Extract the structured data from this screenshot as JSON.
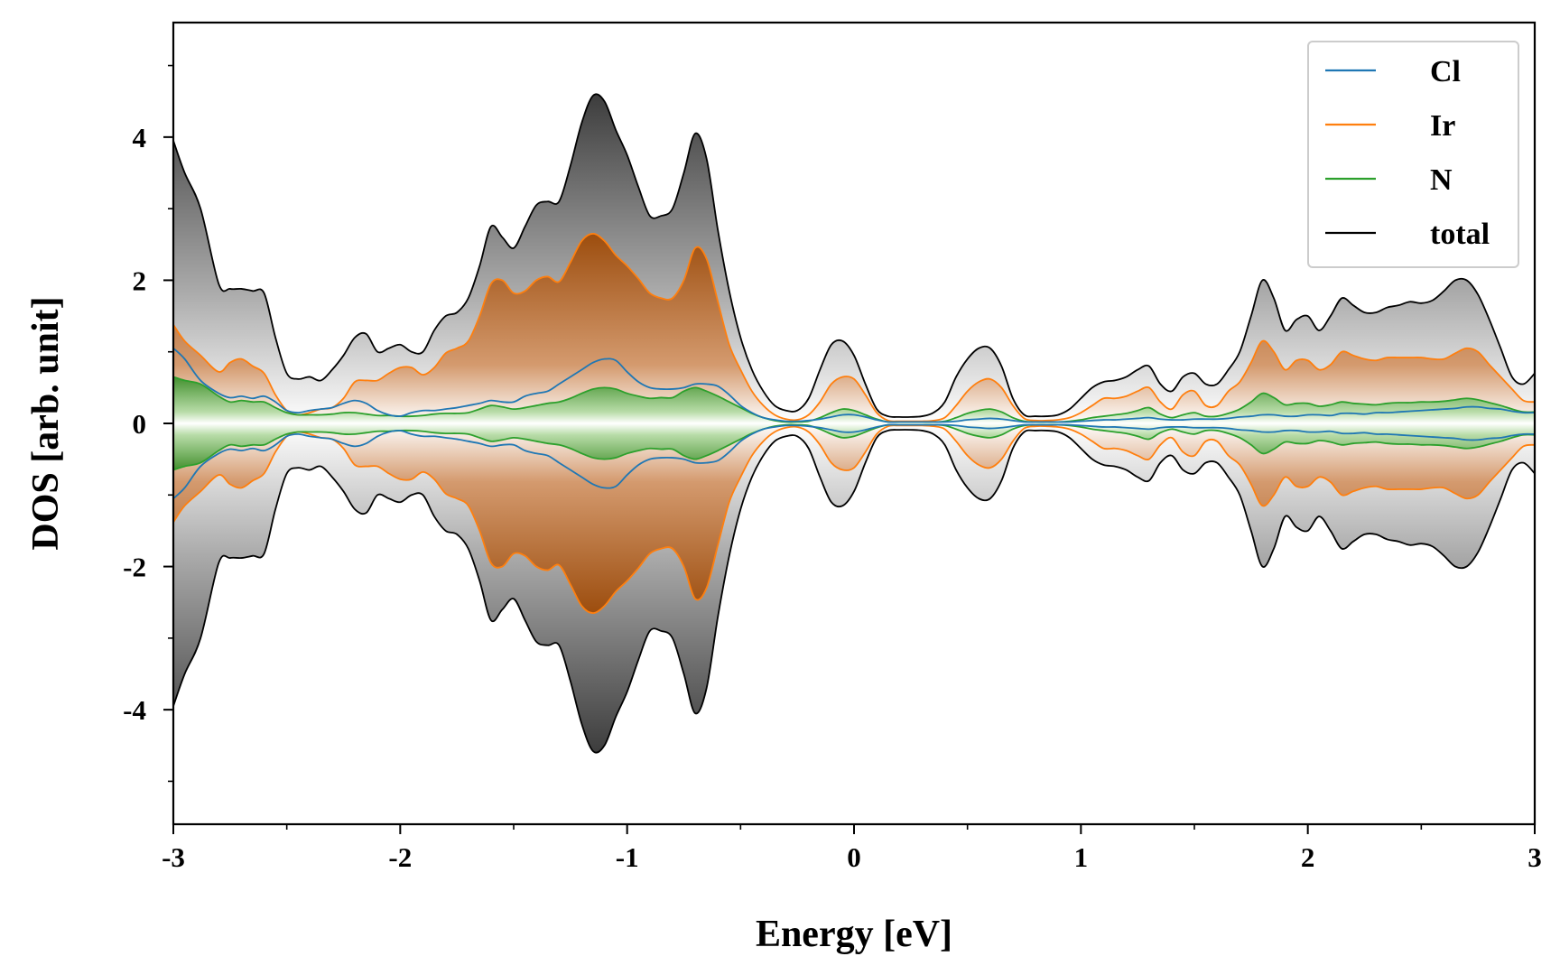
{
  "chart_data": {
    "type": "area",
    "title": "",
    "xlabel": "Energy [eV]",
    "ylabel": "DOS [arb. unit]",
    "xlim": [
      -3,
      3
    ],
    "ylim": [
      -5.6,
      5.6
    ],
    "x_ticks": [
      -3,
      -2,
      -1,
      0,
      1,
      2,
      3
    ],
    "x_tick_labels": [
      "-3",
      "-2",
      "-1",
      "0",
      "1",
      "2",
      "3"
    ],
    "y_ticks": [
      -4,
      -2,
      0,
      2,
      4
    ],
    "y_tick_labels": [
      "-4",
      "-2",
      "0",
      "2",
      "4"
    ],
    "mirrored": true,
    "legend_position": "top-right",
    "x": [
      -3.0,
      -2.95,
      -2.88,
      -2.8,
      -2.75,
      -2.7,
      -2.65,
      -2.6,
      -2.55,
      -2.5,
      -2.45,
      -2.4,
      -2.35,
      -2.3,
      -2.25,
      -2.2,
      -2.15,
      -2.1,
      -2.05,
      -2.0,
      -1.95,
      -1.9,
      -1.85,
      -1.8,
      -1.75,
      -1.7,
      -1.65,
      -1.6,
      -1.55,
      -1.5,
      -1.45,
      -1.4,
      -1.35,
      -1.3,
      -1.25,
      -1.2,
      -1.15,
      -1.1,
      -1.05,
      -1.0,
      -0.95,
      -0.9,
      -0.85,
      -0.8,
      -0.75,
      -0.7,
      -0.65,
      -0.6,
      -0.55,
      -0.5,
      -0.45,
      -0.4,
      -0.35,
      -0.3,
      -0.25,
      -0.2,
      -0.15,
      -0.1,
      -0.05,
      0.0,
      0.05,
      0.1,
      0.15,
      0.2,
      0.25,
      0.3,
      0.35,
      0.4,
      0.45,
      0.5,
      0.55,
      0.6,
      0.65,
      0.7,
      0.75,
      0.8,
      0.85,
      0.9,
      0.95,
      1.0,
      1.05,
      1.1,
      1.15,
      1.2,
      1.25,
      1.3,
      1.35,
      1.4,
      1.45,
      1.5,
      1.55,
      1.6,
      1.65,
      1.7,
      1.75,
      1.8,
      1.85,
      1.9,
      1.95,
      2.0,
      2.05,
      2.1,
      2.15,
      2.2,
      2.25,
      2.3,
      2.35,
      2.4,
      2.45,
      2.5,
      2.55,
      2.6,
      2.65,
      2.7,
      2.75,
      2.8,
      2.85,
      2.9,
      2.95,
      3.0
    ],
    "series": [
      {
        "name": "Cl",
        "color": "#1f77b4",
        "values": [
          1.05,
          0.9,
          0.6,
          0.42,
          0.36,
          0.38,
          0.35,
          0.38,
          0.3,
          0.18,
          0.15,
          0.18,
          0.2,
          0.22,
          0.28,
          0.32,
          0.28,
          0.18,
          0.12,
          0.1,
          0.15,
          0.18,
          0.18,
          0.2,
          0.22,
          0.25,
          0.28,
          0.32,
          0.3,
          0.3,
          0.38,
          0.42,
          0.45,
          0.55,
          0.65,
          0.75,
          0.85,
          0.9,
          0.88,
          0.72,
          0.58,
          0.5,
          0.48,
          0.48,
          0.5,
          0.55,
          0.55,
          0.52,
          0.4,
          0.25,
          0.15,
          0.08,
          0.05,
          0.03,
          0.03,
          0.04,
          0.06,
          0.09,
          0.12,
          0.12,
          0.09,
          0.05,
          0.02,
          0.02,
          0.02,
          0.02,
          0.02,
          0.02,
          0.03,
          0.05,
          0.06,
          0.07,
          0.06,
          0.04,
          0.02,
          0.02,
          0.02,
          0.02,
          0.02,
          0.03,
          0.04,
          0.05,
          0.05,
          0.06,
          0.07,
          0.08,
          0.06,
          0.05,
          0.05,
          0.06,
          0.06,
          0.06,
          0.07,
          0.09,
          0.1,
          0.12,
          0.12,
          0.1,
          0.1,
          0.12,
          0.12,
          0.11,
          0.14,
          0.14,
          0.13,
          0.15,
          0.15,
          0.16,
          0.17,
          0.18,
          0.19,
          0.2,
          0.21,
          0.23,
          0.23,
          0.21,
          0.2,
          0.17,
          0.15,
          0.15
        ]
      },
      {
        "name": "Ir",
        "color": "#ff7f0e",
        "values": [
          1.38,
          1.15,
          0.95,
          0.72,
          0.85,
          0.9,
          0.8,
          0.7,
          0.4,
          0.18,
          0.12,
          0.15,
          0.2,
          0.22,
          0.35,
          0.58,
          0.6,
          0.6,
          0.7,
          0.78,
          0.78,
          0.68,
          0.78,
          0.98,
          1.05,
          1.15,
          1.5,
          1.95,
          2.0,
          1.82,
          1.85,
          2.0,
          2.05,
          1.98,
          2.25,
          2.55,
          2.65,
          2.55,
          2.35,
          2.2,
          2.02,
          1.82,
          1.75,
          1.75,
          2.0,
          2.45,
          2.3,
          1.7,
          1.1,
          0.75,
          0.45,
          0.25,
          0.12,
          0.06,
          0.05,
          0.12,
          0.3,
          0.55,
          0.65,
          0.62,
          0.4,
          0.15,
          0.04,
          0.03,
          0.03,
          0.03,
          0.04,
          0.08,
          0.25,
          0.45,
          0.58,
          0.62,
          0.5,
          0.25,
          0.07,
          0.04,
          0.04,
          0.05,
          0.08,
          0.15,
          0.25,
          0.35,
          0.35,
          0.38,
          0.45,
          0.5,
          0.3,
          0.2,
          0.4,
          0.45,
          0.25,
          0.25,
          0.45,
          0.58,
          0.85,
          1.15,
          1.0,
          0.75,
          0.88,
          0.88,
          0.75,
          0.82,
          1.0,
          0.95,
          0.9,
          0.88,
          0.92,
          0.92,
          0.92,
          0.92,
          0.9,
          0.9,
          0.98,
          1.05,
          1.0,
          0.82,
          0.65,
          0.48,
          0.32,
          0.3
        ]
      },
      {
        "name": "N",
        "color": "#2ca02c",
        "values": [
          0.65,
          0.6,
          0.55,
          0.38,
          0.3,
          0.32,
          0.3,
          0.3,
          0.22,
          0.15,
          0.12,
          0.12,
          0.12,
          0.13,
          0.15,
          0.15,
          0.13,
          0.11,
          0.11,
          0.1,
          0.1,
          0.11,
          0.13,
          0.14,
          0.14,
          0.15,
          0.2,
          0.25,
          0.23,
          0.2,
          0.22,
          0.25,
          0.28,
          0.3,
          0.35,
          0.42,
          0.48,
          0.5,
          0.48,
          0.42,
          0.38,
          0.35,
          0.36,
          0.36,
          0.45,
          0.5,
          0.45,
          0.38,
          0.3,
          0.22,
          0.14,
          0.08,
          0.04,
          0.02,
          0.02,
          0.03,
          0.08,
          0.15,
          0.2,
          0.18,
          0.12,
          0.06,
          0.02,
          0.02,
          0.02,
          0.02,
          0.02,
          0.03,
          0.08,
          0.14,
          0.18,
          0.2,
          0.16,
          0.08,
          0.03,
          0.02,
          0.02,
          0.02,
          0.03,
          0.05,
          0.08,
          0.1,
          0.12,
          0.14,
          0.18,
          0.22,
          0.13,
          0.08,
          0.12,
          0.15,
          0.1,
          0.1,
          0.14,
          0.2,
          0.3,
          0.42,
          0.36,
          0.26,
          0.28,
          0.28,
          0.24,
          0.26,
          0.3,
          0.28,
          0.27,
          0.26,
          0.28,
          0.29,
          0.29,
          0.3,
          0.3,
          0.31,
          0.33,
          0.35,
          0.33,
          0.29,
          0.25,
          0.2,
          0.16,
          0.16
        ]
      },
      {
        "name": "total",
        "color": "#000000",
        "values": [
          3.95,
          3.5,
          3.0,
          1.95,
          1.88,
          1.88,
          1.85,
          1.82,
          1.2,
          0.7,
          0.62,
          0.65,
          0.6,
          0.75,
          0.95,
          1.2,
          1.25,
          1.0,
          1.05,
          1.1,
          1.0,
          1.0,
          1.3,
          1.5,
          1.55,
          1.75,
          2.2,
          2.75,
          2.6,
          2.45,
          2.75,
          3.05,
          3.1,
          3.1,
          3.6,
          4.2,
          4.58,
          4.5,
          4.1,
          3.75,
          3.3,
          2.9,
          2.9,
          3.0,
          3.5,
          4.05,
          3.7,
          2.7,
          1.85,
          1.2,
          0.75,
          0.45,
          0.25,
          0.18,
          0.18,
          0.35,
          0.75,
          1.1,
          1.15,
          0.95,
          0.55,
          0.2,
          0.1,
          0.09,
          0.09,
          0.1,
          0.15,
          0.3,
          0.65,
          0.9,
          1.05,
          1.05,
          0.8,
          0.35,
          0.12,
          0.1,
          0.1,
          0.12,
          0.2,
          0.35,
          0.5,
          0.58,
          0.6,
          0.65,
          0.75,
          0.8,
          0.55,
          0.45,
          0.65,
          0.7,
          0.55,
          0.55,
          0.75,
          1.0,
          1.5,
          2.0,
          1.75,
          1.3,
          1.45,
          1.5,
          1.3,
          1.5,
          1.75,
          1.65,
          1.55,
          1.55,
          1.62,
          1.65,
          1.7,
          1.68,
          1.72,
          1.85,
          2.0,
          2.0,
          1.8,
          1.45,
          1.05,
          0.65,
          0.55,
          0.7
        ]
      }
    ]
  }
}
